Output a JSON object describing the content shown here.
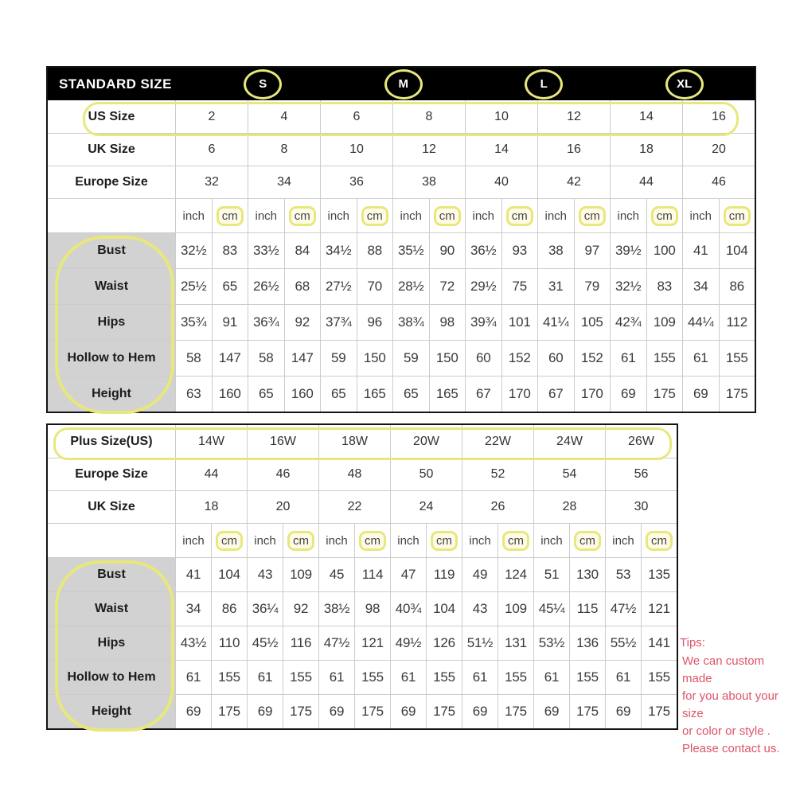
{
  "highlight_color": "#e8e77c",
  "standard_table": {
    "header": {
      "title": "STANDARD SIZE",
      "size_labels": [
        "S",
        "M",
        "L",
        "XL"
      ]
    },
    "size_rows": [
      {
        "label": "US Size",
        "values": [
          "2",
          "4",
          "6",
          "8",
          "10",
          "12",
          "14",
          "16"
        ],
        "highlighted": true
      },
      {
        "label": "UK Size",
        "values": [
          "6",
          "8",
          "10",
          "12",
          "14",
          "16",
          "18",
          "20"
        ],
        "highlighted": false
      },
      {
        "label": "Europe Size",
        "values": [
          "32",
          "34",
          "36",
          "38",
          "40",
          "42",
          "44",
          "46"
        ],
        "highlighted": false
      }
    ],
    "unit_row": {
      "inch_label": "inch",
      "cm_label": "cm",
      "pairs": 8,
      "cm_highlighted": true
    },
    "measure_rows": [
      {
        "label": "Bust",
        "values": [
          "32½",
          "83",
          "33½",
          "84",
          "34½",
          "88",
          "35½",
          "90",
          "36½",
          "93",
          "38",
          "97",
          "39½",
          "100",
          "41",
          "104"
        ]
      },
      {
        "label": "Waist",
        "values": [
          "25½",
          "65",
          "26½",
          "68",
          "27½",
          "70",
          "28½",
          "72",
          "29½",
          "75",
          "31",
          "79",
          "32½",
          "83",
          "34",
          "86"
        ]
      },
      {
        "label": "Hips",
        "values": [
          "35¾",
          "91",
          "36¾",
          "92",
          "37¾",
          "96",
          "38¾",
          "98",
          "39¾",
          "101",
          "41¼",
          "105",
          "42¾",
          "109",
          "44¼",
          "112"
        ]
      },
      {
        "label": "Hollow to Hem",
        "values": [
          "58",
          "147",
          "58",
          "147",
          "59",
          "150",
          "59",
          "150",
          "60",
          "152",
          "60",
          "152",
          "61",
          "155",
          "61",
          "155"
        ]
      },
      {
        "label": "Height",
        "values": [
          "63",
          "160",
          "65",
          "160",
          "65",
          "165",
          "65",
          "165",
          "67",
          "170",
          "67",
          "170",
          "69",
          "175",
          "69",
          "175"
        ]
      }
    ],
    "labels_highlighted": true
  },
  "plus_table": {
    "size_rows": [
      {
        "label": "Plus Size(US)",
        "values": [
          "14W",
          "16W",
          "18W",
          "20W",
          "22W",
          "24W",
          "26W"
        ],
        "highlighted": true
      },
      {
        "label": "Europe Size",
        "values": [
          "44",
          "46",
          "48",
          "50",
          "52",
          "54",
          "56"
        ],
        "highlighted": false
      },
      {
        "label": "UK Size",
        "values": [
          "18",
          "20",
          "22",
          "24",
          "26",
          "28",
          "30"
        ],
        "highlighted": false
      }
    ],
    "unit_row": {
      "inch_label": "inch",
      "cm_label": "cm",
      "pairs": 7,
      "cm_highlighted": true
    },
    "measure_rows": [
      {
        "label": "Bust",
        "values": [
          "41",
          "104",
          "43",
          "109",
          "45",
          "114",
          "47",
          "119",
          "49",
          "124",
          "51",
          "130",
          "53",
          "135"
        ]
      },
      {
        "label": "Waist",
        "values": [
          "34",
          "86",
          "36¼",
          "92",
          "38½",
          "98",
          "40¾",
          "104",
          "43",
          "109",
          "45¼",
          "115",
          "47½",
          "121"
        ]
      },
      {
        "label": "Hips",
        "values": [
          "43½",
          "110",
          "45½",
          "116",
          "47½",
          "121",
          "49½",
          "126",
          "51½",
          "131",
          "53½",
          "136",
          "55½",
          "141"
        ]
      },
      {
        "label": "Hollow to Hem",
        "values": [
          "61",
          "155",
          "61",
          "155",
          "61",
          "155",
          "61",
          "155",
          "61",
          "155",
          "61",
          "155",
          "61",
          "155"
        ]
      },
      {
        "label": "Height",
        "values": [
          "69",
          "175",
          "69",
          "175",
          "69",
          "175",
          "69",
          "175",
          "69",
          "175",
          "69",
          "175",
          "69",
          "175"
        ]
      }
    ],
    "labels_highlighted": true
  },
  "tips": {
    "title": "Tips:",
    "lines": [
      "We can custom made",
      "for you about your size",
      "or color or style .",
      "Please contact us."
    ],
    "color": "#de5468"
  }
}
